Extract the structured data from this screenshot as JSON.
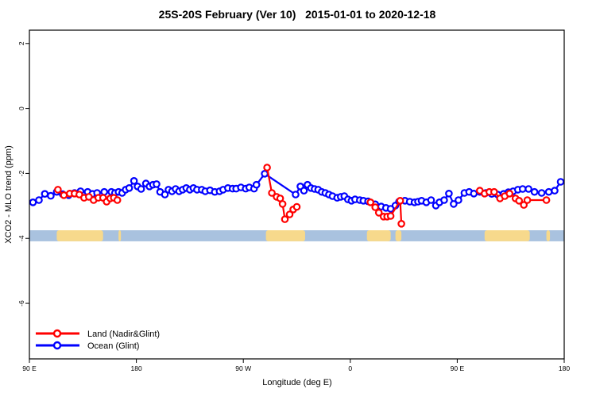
{
  "title": "25S-20S February (Ver 10)   2015-01-01 to 2020-12-18",
  "chart_data": {
    "type": "line",
    "title": "25S-20S February (Ver 10)   2015-01-01 to 2020-12-18",
    "xlabel": "Longitude (deg E)",
    "ylabel": "XCO2 - MLO trend (ppm)",
    "x_axis": {
      "range": [
        90,
        540
      ],
      "ticks": [
        90,
        180,
        270,
        360,
        450,
        540
      ],
      "tick_labels": [
        "90 E",
        "180",
        "90 W",
        "0",
        "90 E",
        "180"
      ]
    },
    "y_axis": {
      "range": [
        2.41,
        -7.71
      ],
      "ticks": [
        2,
        0,
        -2,
        -4,
        -6
      ],
      "tick_labels": [
        "2",
        "0",
        "-2",
        "-4",
        "-6"
      ]
    },
    "grid": "off",
    "legend": {
      "position": "bottom-left"
    },
    "map_strip": {
      "y_top": -3.75,
      "y_bottom": -4.09,
      "ocean_color": "#a9c2df",
      "land_color": "#f7d98c",
      "land_segments_deg": [
        [
          113,
          152
        ],
        [
          165,
          167
        ],
        [
          289,
          322
        ],
        [
          374,
          394
        ],
        [
          398,
          403
        ],
        [
          473,
          511
        ],
        [
          525,
          528
        ]
      ]
    },
    "series": [
      {
        "name": "Ocean (Glint)",
        "color": "#0000ff",
        "marker": "open-circle",
        "segments": [
          [
            [
              93,
              -2.89
            ],
            [
              98,
              -2.82
            ],
            [
              103,
              -2.63
            ],
            [
              108,
              -2.69
            ],
            [
              113,
              -2.57
            ],
            [
              118,
              -2.64
            ],
            [
              123,
              -2.67
            ],
            [
              128,
              -2.6
            ],
            [
              133,
              -2.55
            ],
            [
              139,
              -2.57
            ],
            [
              143,
              -2.63
            ],
            [
              147,
              -2.6
            ],
            [
              153,
              -2.57
            ],
            [
              159,
              -2.57
            ],
            [
              162,
              -2.6
            ],
            [
              165,
              -2.57
            ],
            [
              168,
              -2.6
            ],
            [
              171,
              -2.5
            ],
            [
              174,
              -2.45
            ],
            [
              178,
              -2.23
            ],
            [
              181,
              -2.4
            ],
            [
              184,
              -2.48
            ],
            [
              188,
              -2.31
            ],
            [
              191,
              -2.4
            ],
            [
              194,
              -2.35
            ],
            [
              197,
              -2.33
            ],
            [
              200,
              -2.57
            ],
            [
              204,
              -2.65
            ],
            [
              207,
              -2.5
            ],
            [
              210,
              -2.55
            ],
            [
              213,
              -2.48
            ],
            [
              216,
              -2.55
            ],
            [
              219,
              -2.5
            ],
            [
              222,
              -2.45
            ],
            [
              225,
              -2.5
            ],
            [
              228,
              -2.45
            ],
            [
              231,
              -2.5
            ],
            [
              235,
              -2.5
            ],
            [
              238,
              -2.55
            ],
            [
              242,
              -2.52
            ],
            [
              246,
              -2.57
            ],
            [
              250,
              -2.55
            ],
            [
              253,
              -2.5
            ],
            [
              257,
              -2.45
            ],
            [
              261,
              -2.47
            ],
            [
              264,
              -2.47
            ],
            [
              268,
              -2.43
            ],
            [
              272,
              -2.47
            ],
            [
              275,
              -2.43
            ],
            [
              279,
              -2.47
            ],
            [
              281,
              -2.35
            ],
            [
              288,
              -2.01
            ],
            [
              314,
              -2.65
            ],
            [
              318,
              -2.4
            ],
            [
              321,
              -2.53
            ],
            [
              324,
              -2.35
            ],
            [
              327,
              -2.45
            ],
            [
              330,
              -2.48
            ],
            [
              333,
              -2.5
            ],
            [
              336,
              -2.57
            ],
            [
              339,
              -2.6
            ],
            [
              342,
              -2.65
            ],
            [
              345,
              -2.7
            ],
            [
              349,
              -2.75
            ],
            [
              352,
              -2.72
            ],
            [
              355,
              -2.7
            ],
            [
              358,
              -2.8
            ],
            [
              361,
              -2.84
            ],
            [
              364,
              -2.8
            ],
            [
              368,
              -2.82
            ],
            [
              371,
              -2.84
            ],
            [
              375,
              -2.86
            ],
            [
              381,
              -2.95
            ],
            [
              386,
              -3.02
            ],
            [
              390,
              -3.06
            ],
            [
              394,
              -3.09
            ],
            [
              398,
              -2.99
            ],
            [
              401,
              -2.87
            ],
            [
              406,
              -2.84
            ],
            [
              410,
              -2.87
            ],
            [
              414,
              -2.89
            ],
            [
              417,
              -2.87
            ],
            [
              420,
              -2.84
            ],
            [
              424,
              -2.89
            ],
            [
              428,
              -2.82
            ],
            [
              432,
              -2.99
            ],
            [
              435,
              -2.89
            ],
            [
              439,
              -2.82
            ],
            [
              443,
              -2.62
            ],
            [
              447,
              -2.94
            ],
            [
              451,
              -2.82
            ],
            [
              456,
              -2.6
            ],
            [
              460,
              -2.57
            ],
            [
              464,
              -2.62
            ],
            [
              469,
              -2.57
            ],
            [
              474,
              -2.6
            ],
            [
              479,
              -2.63
            ],
            [
              484,
              -2.65
            ],
            [
              489,
              -2.63
            ],
            [
              493,
              -2.58
            ],
            [
              497,
              -2.55
            ],
            [
              501,
              -2.5
            ],
            [
              505,
              -2.48
            ],
            [
              510,
              -2.48
            ],
            [
              515,
              -2.57
            ],
            [
              521,
              -2.6
            ],
            [
              527,
              -2.57
            ],
            [
              532,
              -2.53
            ],
            [
              537,
              -2.26
            ]
          ]
        ]
      },
      {
        "name": "Land (Nadir&Glint)",
        "color": "#ff0000",
        "marker": "open-circle",
        "segments": [
          [
            [
              114,
              -2.5
            ],
            [
              119,
              -2.67
            ],
            [
              124,
              -2.62
            ],
            [
              128,
              -2.62
            ],
            [
              132,
              -2.65
            ],
            [
              136,
              -2.75
            ],
            [
              140,
              -2.72
            ],
            [
              144,
              -2.82
            ],
            [
              148,
              -2.75
            ],
            [
              152,
              -2.75
            ],
            [
              155,
              -2.87
            ],
            [
              158,
              -2.77
            ],
            [
              161,
              -2.75
            ],
            [
              164,
              -2.82
            ]
          ],
          [
            [
              290,
              -1.82
            ],
            [
              294,
              -2.6
            ],
            [
              298,
              -2.72
            ],
            [
              301,
              -2.77
            ],
            [
              303,
              -2.94
            ],
            [
              305,
              -3.41
            ],
            [
              309,
              -3.26
            ],
            [
              312,
              -3.11
            ],
            [
              315,
              -3.03
            ]
          ],
          [
            [
              377,
              -2.89
            ],
            [
              381,
              -3.04
            ],
            [
              384,
              -3.21
            ],
            [
              388,
              -3.33
            ],
            [
              391,
              -3.33
            ],
            [
              394,
              -3.31
            ],
            [
              402,
              -2.84
            ],
            [
              403,
              -3.55
            ]
          ],
          [
            [
              469,
              -2.53
            ],
            [
              473,
              -2.62
            ],
            [
              477,
              -2.57
            ],
            [
              481,
              -2.57
            ],
            [
              486,
              -2.77
            ],
            [
              490,
              -2.7
            ],
            [
              494,
              -2.62
            ],
            [
              499,
              -2.77
            ],
            [
              502,
              -2.84
            ],
            [
              506,
              -2.97
            ],
            [
              509,
              -2.82
            ],
            [
              525,
              -2.82
            ]
          ]
        ]
      }
    ],
    "legend_entries": [
      {
        "label": "Land (Nadir&Glint)",
        "color": "#ff0000"
      },
      {
        "label": "Ocean (Glint)",
        "color": "#0000ff"
      }
    ]
  }
}
